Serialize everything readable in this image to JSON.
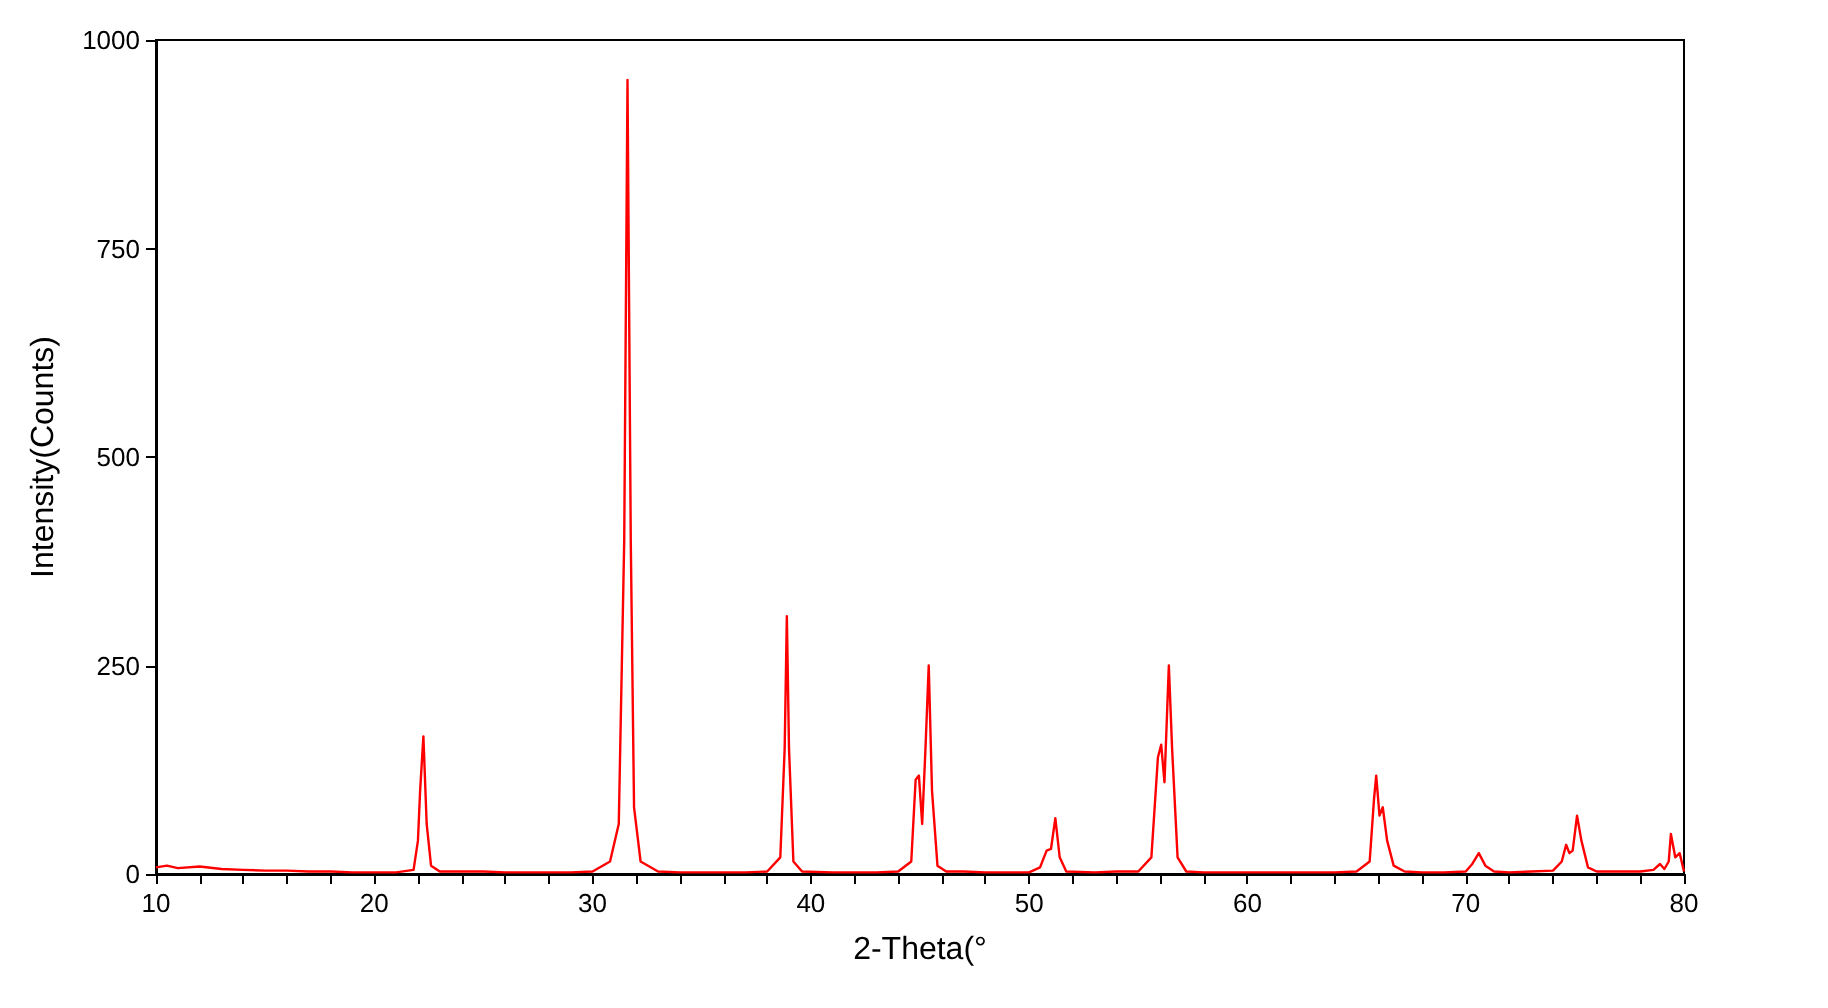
{
  "chart_data": {
    "type": "line",
    "xlabel": "2-Theta(°",
    "ylabel": "Intensity(Counts)",
    "grid": false,
    "marker": "none",
    "line_style": "solid",
    "xlim": [
      10,
      80
    ],
    "xticks": [
      10,
      {
        "value": 12,
        "label": null
      },
      {
        "value": 14,
        "label": null
      },
      {
        "value": 16,
        "label": null
      },
      {
        "value": 18,
        "label": null
      },
      20,
      {
        "value": 22,
        "label": null
      },
      {
        "value": 24,
        "label": null
      },
      {
        "value": 26,
        "label": null
      },
      {
        "value": 28,
        "label": null
      },
      30,
      {
        "value": 32,
        "label": null
      },
      {
        "value": 34,
        "label": null
      },
      {
        "value": 36,
        "label": null
      },
      {
        "value": 38,
        "label": null
      },
      40,
      {
        "value": 42,
        "label": null
      },
      {
        "value": 44,
        "label": null
      },
      {
        "value": 46,
        "label": null
      },
      {
        "value": 48,
        "label": null
      },
      50,
      {
        "value": 52,
        "label": null
      },
      {
        "value": 54,
        "label": null
      },
      {
        "value": 56,
        "label": null
      },
      {
        "value": 58,
        "label": null
      },
      60,
      {
        "value": 62,
        "label": null
      },
      {
        "value": 64,
        "label": null
      },
      {
        "value": 66,
        "label": null
      },
      {
        "value": 68,
        "label": null
      },
      70,
      {
        "value": 72,
        "label": null
      },
      {
        "value": 74,
        "label": null
      },
      {
        "value": 76,
        "label": null
      },
      {
        "value": 78,
        "label": null
      },
      80
    ],
    "ylim": [
      0,
      1000
    ],
    "yticks": [
      0,
      250,
      500,
      750,
      1000
    ],
    "series": [
      {
        "color": "#ff0000",
        "x": [
          10,
          10.5,
          11,
          12,
          13,
          14,
          15,
          16,
          17,
          18,
          19,
          20,
          21,
          21.8,
          22.0,
          22.1,
          22.25,
          22.4,
          22.6,
          23,
          24,
          25,
          26,
          27,
          28,
          29,
          30,
          30.8,
          31.2,
          31.45,
          31.6,
          31.75,
          31.9,
          32.2,
          33,
          34,
          35,
          36,
          37,
          38,
          38.6,
          38.8,
          38.9,
          39.0,
          39.2,
          39.6,
          41,
          42,
          43,
          44,
          44.6,
          44.8,
          44.95,
          45.1,
          45.25,
          45.4,
          45.55,
          45.8,
          46.2,
          47,
          48,
          49,
          50,
          50.5,
          50.8,
          51.0,
          51.2,
          51.4,
          51.7,
          53,
          54,
          55,
          55.6,
          55.9,
          56.05,
          56.2,
          56.4,
          56.55,
          56.8,
          57.2,
          58,
          60,
          62,
          64,
          65,
          65.6,
          65.8,
          65.9,
          66.05,
          66.2,
          66.4,
          66.7,
          67.2,
          68,
          69,
          70,
          70.3,
          70.6,
          70.9,
          71.3,
          72,
          73,
          74,
          74.4,
          74.6,
          74.75,
          74.9,
          75.1,
          75.3,
          75.6,
          76,
          77,
          78,
          78.6,
          78.9,
          79.1,
          79.3,
          79.4,
          79.6,
          79.8,
          80
        ],
        "values": [
          8,
          10,
          7,
          9,
          6,
          5,
          4,
          4,
          3,
          3,
          2,
          2,
          2,
          5,
          40,
          100,
          165,
          60,
          10,
          3,
          3,
          3,
          2,
          2,
          2,
          2,
          3,
          15,
          60,
          400,
          952,
          400,
          80,
          15,
          3,
          2,
          2,
          2,
          2,
          3,
          20,
          150,
          309,
          150,
          15,
          3,
          2,
          2,
          2,
          3,
          15,
          113,
          118,
          60,
          150,
          250,
          100,
          10,
          3,
          3,
          2,
          2,
          2,
          8,
          28,
          30,
          67,
          20,
          3,
          2,
          3,
          3,
          20,
          140,
          155,
          110,
          250,
          150,
          20,
          3,
          2,
          2,
          2,
          2,
          3,
          15,
          90,
          118,
          70,
          80,
          40,
          10,
          3,
          2,
          2,
          3,
          12,
          25,
          10,
          3,
          2,
          3,
          4,
          15,
          35,
          25,
          28,
          70,
          40,
          8,
          3,
          3,
          3,
          5,
          12,
          6,
          15,
          48,
          20,
          25,
          3
        ]
      }
    ]
  }
}
